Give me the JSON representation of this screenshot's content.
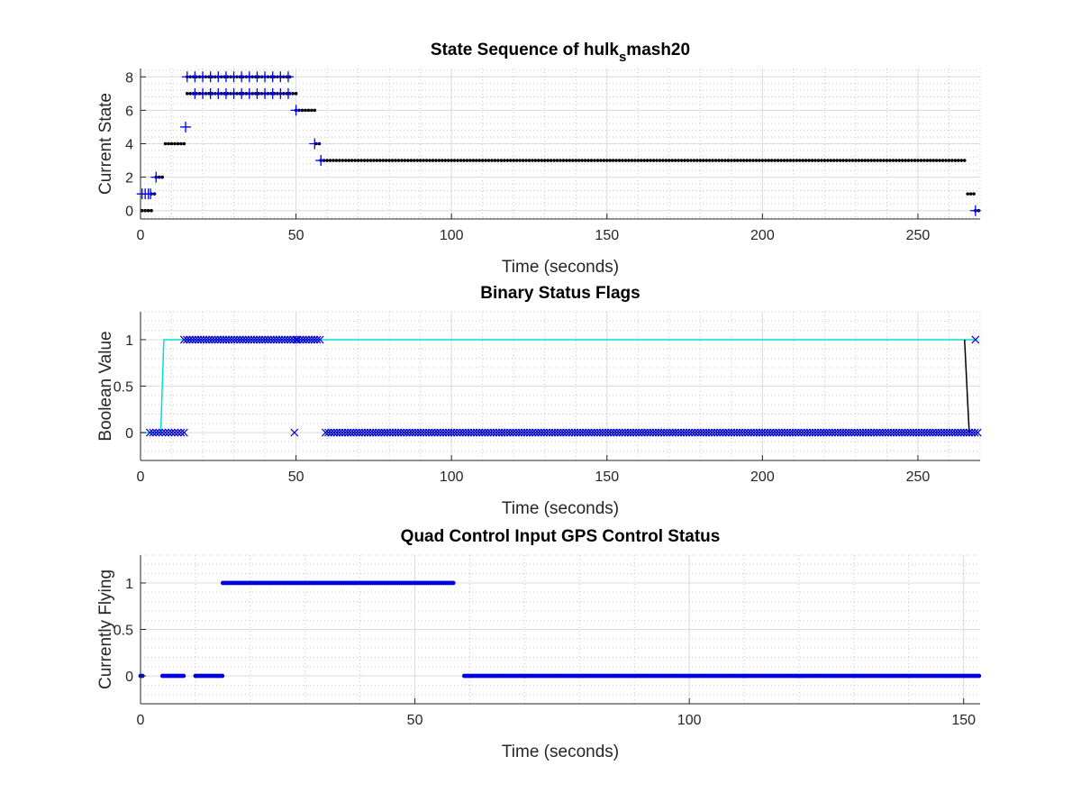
{
  "chart_data": [
    {
      "type": "scatter",
      "title": "State Sequence of hulk",
      "title_subscript": "s",
      "title_suffix": "mash20",
      "xlabel": "Time (seconds)",
      "ylabel": "Current State",
      "xlim": [
        0,
        270
      ],
      "ylim": [
        -0.5,
        8.5
      ],
      "xticks": [
        0,
        50,
        100,
        150,
        200,
        250
      ],
      "yticks": [
        0,
        2,
        4,
        6,
        8
      ],
      "grid": true,
      "minor_grid": true,
      "series": [
        {
          "marker": "dot",
          "color": "#000000",
          "segments": [
            {
              "x": [
                0.5,
                3.5
              ],
              "y": 0
            },
            {
              "x": [
                3.5,
                5
              ],
              "y": 1
            },
            {
              "x": [
                5,
                7.5
              ],
              "y": 2
            },
            {
              "x": [
                8,
                14
              ],
              "y": 4
            },
            {
              "x": [
                15,
                50
              ],
              "y": 7
            },
            {
              "x": [
                15,
                48.5
              ],
              "y": 8
            },
            {
              "x": [
                50,
                56
              ],
              "y": 6
            },
            {
              "x": [
                56.5,
                58
              ],
              "y": 4
            },
            {
              "x": [
                58,
                265.5
              ],
              "y": 3
            },
            {
              "x": [
                266,
                268
              ],
              "y": 1
            },
            {
              "x": [
                268.5,
                269.5
              ],
              "y": 0
            }
          ]
        },
        {
          "marker": "plus",
          "color": "#0000ff",
          "points": [
            [
              15,
              8
            ],
            [
              17.5,
              8
            ],
            [
              20,
              8
            ],
            [
              22.5,
              8
            ],
            [
              25,
              8
            ],
            [
              27.5,
              8
            ],
            [
              30,
              8
            ],
            [
              32.5,
              8
            ],
            [
              35,
              8
            ],
            [
              37.5,
              8
            ],
            [
              40,
              8
            ],
            [
              42.5,
              8
            ],
            [
              45,
              8
            ],
            [
              47.5,
              8
            ],
            [
              17.5,
              7
            ],
            [
              20,
              7
            ],
            [
              22.5,
              7
            ],
            [
              25,
              7
            ],
            [
              27.5,
              7
            ],
            [
              30,
              7
            ],
            [
              32.5,
              7
            ],
            [
              35,
              7
            ],
            [
              37.5,
              7
            ],
            [
              40,
              7
            ],
            [
              42.5,
              7
            ],
            [
              45,
              7
            ],
            [
              47.5,
              7
            ],
            [
              0.5,
              1
            ],
            [
              1.5,
              1
            ],
            [
              2.5,
              1
            ],
            [
              3.2,
              1
            ],
            [
              5,
              2
            ],
            [
              14.5,
              5
            ],
            [
              50,
              6
            ],
            [
              56,
              4
            ],
            [
              58,
              3
            ],
            [
              268.5,
              0
            ]
          ]
        }
      ]
    },
    {
      "type": "scatter",
      "title": "Binary Status Flags",
      "xlabel": "Time (seconds)",
      "ylabel": "Boolean Value",
      "xlim": [
        0,
        270
      ],
      "ylim": [
        -0.3,
        1.3
      ],
      "xticks": [
        0,
        50,
        100,
        150,
        200,
        250
      ],
      "yticks": [
        0,
        0.5,
        1
      ],
      "grid": true,
      "minor_grid": true,
      "series": [
        {
          "type": "line",
          "color": "#00dddd",
          "x": [
            0,
            6.5,
            7.5,
            269
          ],
          "y": [
            0,
            0,
            1,
            1
          ]
        },
        {
          "type": "line",
          "color": "#000000",
          "x": [
            265,
            266.5
          ],
          "y": [
            1,
            0
          ]
        },
        {
          "marker": "x",
          "color": "#0000cc",
          "segments": [
            {
              "x": [
                3,
                14
              ],
              "y": 0,
              "step": 1
            },
            {
              "x": [
                14,
                50
              ],
              "y": 1,
              "step": 0.9
            },
            {
              "x": [
                50.5,
                58.5
              ],
              "y": 1,
              "step": 0.9
            },
            {
              "x": [
                59.5,
                269.5
              ],
              "y": 0,
              "step": 0.9
            }
          ],
          "points": [
            [
              49.5,
              0
            ],
            [
              268.5,
              1
            ]
          ]
        }
      ]
    },
    {
      "type": "scatter",
      "title": "Quad Control Input GPS Control Status",
      "xlabel": "Time (seconds)",
      "ylabel": "Currently Flying",
      "xlim": [
        0,
        153
      ],
      "ylim": [
        -0.3,
        1.3
      ],
      "xticks": [
        0,
        50,
        100,
        150
      ],
      "yticks": [
        0,
        0.5,
        1
      ],
      "grid": true,
      "minor_grid": true,
      "series": [
        {
          "marker": "dot-thick",
          "color": "#0000dd",
          "segments": [
            {
              "x": [
                0,
                0.6
              ],
              "y": 0
            },
            {
              "x": [
                4,
                8
              ],
              "y": 0
            },
            {
              "x": [
                10,
                15
              ],
              "y": 0
            },
            {
              "x": [
                15,
                57
              ],
              "y": 1
            },
            {
              "x": [
                59,
                153
              ],
              "y": 0
            }
          ]
        }
      ]
    }
  ]
}
